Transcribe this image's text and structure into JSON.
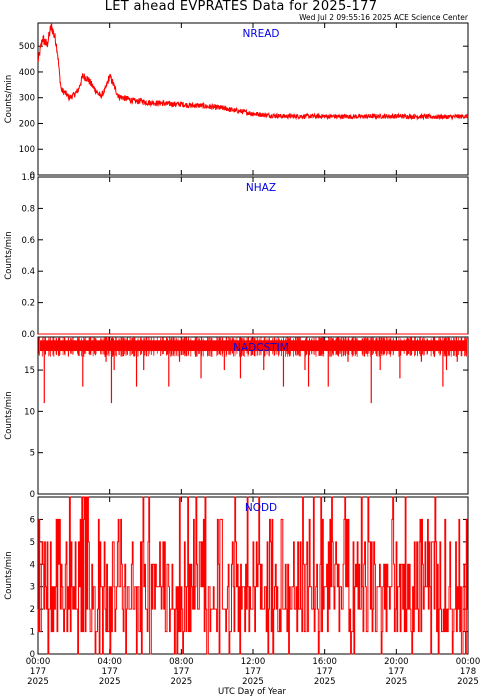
{
  "title": "LET ahead EVPRATES Data for 2025-177",
  "subtitle": "Wed Jul  2 09:55:16 2025 ACE Science Center",
  "colors": {
    "series": "#ff0000",
    "panel_title": "#0000e0",
    "axes": "#000000"
  },
  "x_axis": {
    "label": "UTC Day of Year",
    "range_hours": [
      0,
      24
    ],
    "ticks": [
      {
        "hours": 0,
        "time": "00:00",
        "doy": "177",
        "year": "2025"
      },
      {
        "hours": 4,
        "time": "04:00",
        "doy": "177",
        "year": "2025"
      },
      {
        "hours": 8,
        "time": "08:00",
        "doy": "177",
        "year": "2025"
      },
      {
        "hours": 12,
        "time": "12:00",
        "doy": "177",
        "year": "2025"
      },
      {
        "hours": 16,
        "time": "16:00",
        "doy": "177",
        "year": "2025"
      },
      {
        "hours": 20,
        "time": "20:00",
        "doy": "177",
        "year": "2025"
      },
      {
        "hours": 24,
        "time": "00:00",
        "doy": "178",
        "year": "2025"
      }
    ]
  },
  "chart_data": [
    {
      "type": "line",
      "title": "NREAD",
      "ylabel": "Counts/min",
      "ylim": [
        0,
        590
      ],
      "yticks": [
        0,
        100,
        200,
        300,
        400,
        500
      ],
      "series": [
        {
          "x": [
            0,
            0.25,
            0.5,
            0.75,
            1,
            1.1,
            1.2,
            1.3,
            1.4,
            1.5,
            1.75,
            2,
            2.25,
            2.5,
            2.75,
            3,
            3.25,
            3.5,
            3.75,
            4,
            4.25,
            4.5,
            4.75,
            5,
            5.25,
            5.5,
            5.75,
            6,
            6.5,
            7,
            7.5,
            8,
            8.5,
            9,
            9.5,
            10,
            10.5,
            11,
            11.5,
            12,
            12.5,
            13,
            13.5,
            14,
            15,
            16,
            17,
            18,
            19,
            20,
            21,
            22,
            23,
            24
          ],
          "y": [
            440,
            530,
            505,
            580,
            520,
            470,
            390,
            330,
            325,
            320,
            300,
            310,
            330,
            385,
            375,
            350,
            325,
            305,
            330,
            385,
            345,
            305,
            300,
            295,
            290,
            285,
            288,
            282,
            280,
            278,
            275,
            275,
            270,
            270,
            265,
            262,
            258,
            250,
            245,
            238,
            234,
            231,
            229,
            228,
            228,
            228,
            227,
            227,
            228,
            228,
            227,
            226,
            226,
            228
          ]
        }
      ]
    },
    {
      "type": "line",
      "title": "NHAZ",
      "ylabel": "Counts/min",
      "ylim": [
        0,
        1
      ],
      "yticks": [
        0.0,
        0.2,
        0.4,
        0.6,
        0.8,
        1.0
      ],
      "series": [
        {
          "x": [
            0,
            24
          ],
          "y": [
            0,
            0
          ]
        }
      ]
    },
    {
      "type": "line",
      "title": "NADCSTIM",
      "ylabel": "Counts/min",
      "ylim": [
        0,
        19
      ],
      "yticks": [
        0,
        5,
        10,
        15
      ],
      "series": [
        {
          "baseline": 18,
          "band": [
            17,
            19
          ],
          "dips": [
            {
              "x": 0.35,
              "y": 11
            },
            {
              "x": 2.5,
              "y": 13
            },
            {
              "x": 3.8,
              "y": 16
            },
            {
              "x": 4.25,
              "y": 15
            },
            {
              "x": 5.5,
              "y": 13
            },
            {
              "x": 5.9,
              "y": 15
            },
            {
              "x": 7.3,
              "y": 13
            },
            {
              "x": 7.9,
              "y": 16
            },
            {
              "x": 9.1,
              "y": 14
            },
            {
              "x": 10.4,
              "y": 15
            },
            {
              "x": 11.3,
              "y": 14
            },
            {
              "x": 12.6,
              "y": 15
            },
            {
              "x": 13.7,
              "y": 13
            },
            {
              "x": 14.9,
              "y": 15
            },
            {
              "x": 16.2,
              "y": 13
            },
            {
              "x": 17.3,
              "y": 16
            },
            {
              "x": 18.6,
              "y": 11
            },
            {
              "x": 19.1,
              "y": 15
            },
            {
              "x": 20.2,
              "y": 14
            },
            {
              "x": 21.4,
              "y": 16
            },
            {
              "x": 22.6,
              "y": 13
            },
            {
              "x": 22.8,
              "y": 15
            },
            {
              "x": 4.1,
              "y": 11
            },
            {
              "x": 15.1,
              "y": 13
            },
            {
              "x": 23.4,
              "y": 16
            }
          ]
        }
      ]
    },
    {
      "type": "line",
      "title": "NODD",
      "ylabel": "Counts/min",
      "ylim": [
        0,
        7
      ],
      "yticks": [
        0,
        1,
        2,
        3,
        4,
        5,
        6
      ],
      "series": [
        {
          "range": [
            0,
            7
          ],
          "distribution": "noisy integer counts 0-7 per minute, mostly 1-5"
        }
      ]
    }
  ]
}
